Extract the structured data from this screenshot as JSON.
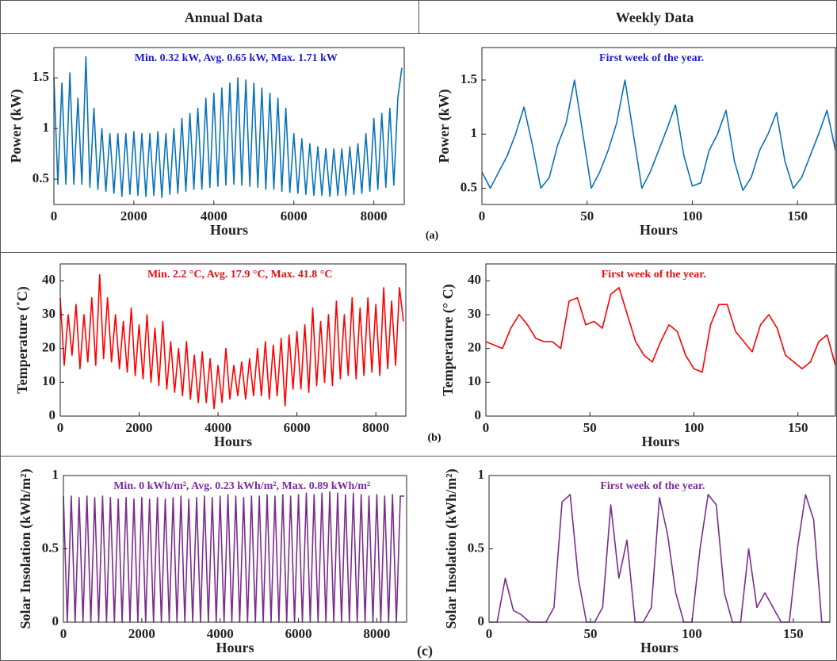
{
  "header": {
    "left": "Annual Data",
    "right": "Weekly Data"
  },
  "panel_labels": [
    "(a)",
    "(b)",
    "(c)"
  ],
  "chart_data": [
    {
      "type": "line",
      "annotation": "Min. 0.32 kW,   Avg. 0.65 kW,   Max. 1.71 kW",
      "annotation_color": "#1c1ccf",
      "xlabel": "Hours",
      "ylabel": "Power (kW)",
      "color": "#0a72b8",
      "xlim": [
        0,
        8760
      ],
      "xticks": [
        0,
        2000,
        4000,
        6000,
        8000
      ],
      "ylim": [
        0.25,
        1.8
      ],
      "yticks": [
        0.5,
        1,
        1.5
      ],
      "x": [
        0,
        100,
        200,
        300,
        400,
        500,
        600,
        700,
        800,
        900,
        1000,
        1100,
        1200,
        1300,
        1400,
        1500,
        1600,
        1700,
        1800,
        1900,
        2000,
        2100,
        2200,
        2300,
        2400,
        2500,
        2600,
        2700,
        2800,
        2900,
        3000,
        3100,
        3200,
        3300,
        3400,
        3500,
        3600,
        3700,
        3800,
        3900,
        4000,
        4100,
        4200,
        4300,
        4400,
        4500,
        4600,
        4700,
        4800,
        4900,
        5000,
        5100,
        5200,
        5300,
        5400,
        5500,
        5600,
        5700,
        5800,
        5900,
        6000,
        6100,
        6200,
        6300,
        6400,
        6500,
        6600,
        6700,
        6800,
        6900,
        7000,
        7100,
        7200,
        7300,
        7400,
        7500,
        7600,
        7700,
        7800,
        7900,
        8000,
        8100,
        8200,
        8300,
        8400,
        8500,
        8600,
        8700
      ],
      "values": [
        1.5,
        0.45,
        1.45,
        0.45,
        1.55,
        0.45,
        1.3,
        0.45,
        1.71,
        0.42,
        1.2,
        0.4,
        1.0,
        0.38,
        0.95,
        0.36,
        0.95,
        0.33,
        0.95,
        0.35,
        0.97,
        0.34,
        0.95,
        0.33,
        0.95,
        0.34,
        0.97,
        0.32,
        0.95,
        0.35,
        1.0,
        0.36,
        1.1,
        0.38,
        1.15,
        0.4,
        1.2,
        0.4,
        1.3,
        0.42,
        1.35,
        0.43,
        1.4,
        0.44,
        1.45,
        0.45,
        1.5,
        0.44,
        1.48,
        0.43,
        1.45,
        0.42,
        1.4,
        0.4,
        1.35,
        0.4,
        1.3,
        0.38,
        1.2,
        0.37,
        0.95,
        0.36,
        0.9,
        0.35,
        0.85,
        0.34,
        0.82,
        0.34,
        0.8,
        0.33,
        0.8,
        0.34,
        0.8,
        0.34,
        0.82,
        0.35,
        0.85,
        0.36,
        0.95,
        0.38,
        1.1,
        0.4,
        1.15,
        0.42,
        1.2,
        0.44,
        1.3,
        1.6
      ]
    },
    {
      "type": "line",
      "annotation": "First week of the year.",
      "annotation_color": "#1c1ccf",
      "xlabel": "Hours",
      "ylabel": "Power (kW)",
      "color": "#0a72b8",
      "xlim": [
        0,
        168
      ],
      "xticks": [
        0,
        50,
        100,
        150
      ],
      "ylim": [
        0.35,
        1.8
      ],
      "yticks": [
        0.5,
        1,
        1.5
      ],
      "x": [
        0,
        4,
        8,
        12,
        16,
        20,
        24,
        28,
        32,
        36,
        40,
        44,
        48,
        52,
        56,
        60,
        64,
        68,
        72,
        76,
        80,
        84,
        88,
        92,
        96,
        100,
        104,
        108,
        112,
        116,
        120,
        124,
        128,
        132,
        136,
        140,
        144,
        148,
        152,
        156,
        160,
        164,
        168
      ],
      "values": [
        0.65,
        0.5,
        0.65,
        0.8,
        1.0,
        1.25,
        0.9,
        0.5,
        0.6,
        0.9,
        1.1,
        1.5,
        1.0,
        0.5,
        0.65,
        0.85,
        1.1,
        1.5,
        1.0,
        0.5,
        0.65,
        0.85,
        1.05,
        1.27,
        0.8,
        0.52,
        0.55,
        0.85,
        1.0,
        1.22,
        0.75,
        0.48,
        0.6,
        0.85,
        1.0,
        1.2,
        0.75,
        0.5,
        0.6,
        0.8,
        1.0,
        1.22,
        0.85
      ]
    },
    {
      "type": "line",
      "annotation": "Min. 2.2 °C,  Avg. 17.9 °C,  Max. 41.8 °C",
      "annotation_color": "#e01010",
      "xlabel": "Hours",
      "ylabel": "Temperature (˚C)",
      "color": "#ff0000",
      "xlim": [
        0,
        8760
      ],
      "xticks": [
        0,
        2000,
        4000,
        6000,
        8000
      ],
      "ylim": [
        0,
        45
      ],
      "yticks": [
        0,
        10,
        20,
        30,
        40
      ],
      "x": [
        0,
        100,
        200,
        300,
        400,
        500,
        600,
        700,
        800,
        900,
        1000,
        1100,
        1200,
        1300,
        1400,
        1500,
        1600,
        1700,
        1800,
        1900,
        2000,
        2100,
        2200,
        2300,
        2400,
        2500,
        2600,
        2700,
        2800,
        2900,
        3000,
        3100,
        3200,
        3300,
        3400,
        3500,
        3600,
        3700,
        3800,
        3900,
        4000,
        4100,
        4200,
        4300,
        4400,
        4500,
        4600,
        4700,
        4800,
        4900,
        5000,
        5100,
        5200,
        5300,
        5400,
        5500,
        5600,
        5700,
        5800,
        5900,
        6000,
        6100,
        6200,
        6300,
        6400,
        6500,
        6600,
        6700,
        6800,
        6900,
        7000,
        7100,
        7200,
        7300,
        7400,
        7500,
        7600,
        7700,
        7800,
        7900,
        8000,
        8100,
        8200,
        8300,
        8400,
        8500,
        8600,
        8700
      ],
      "values": [
        35,
        15,
        30,
        18,
        33,
        14,
        30,
        16,
        35,
        15,
        41.8,
        17,
        35,
        16,
        30,
        14,
        28,
        13,
        32,
        12,
        27,
        11,
        30,
        10,
        26,
        9,
        28,
        8,
        22,
        7,
        20,
        6,
        22,
        5,
        18,
        4,
        19,
        4,
        17,
        2.2,
        15,
        4,
        20,
        5,
        15,
        6,
        16,
        5,
        17,
        6,
        20,
        6,
        22,
        5,
        21,
        6,
        23,
        3,
        24,
        8,
        25,
        8,
        27,
        7,
        32,
        9,
        28,
        10,
        30,
        9,
        34,
        11,
        30,
        12,
        35,
        11,
        32,
        12,
        35,
        13,
        33,
        12,
        38,
        14,
        34,
        15,
        38,
        28
      ]
    },
    {
      "type": "line",
      "annotation": "First week of the year.",
      "annotation_color": "#e01010",
      "xlabel": "Hours",
      "ylabel": "Temperature (° C)",
      "color": "#ff0000",
      "xlim": [
        0,
        168
      ],
      "xticks": [
        0,
        50,
        100,
        150
      ],
      "ylim": [
        0,
        45
      ],
      "yticks": [
        0,
        10,
        20,
        30,
        40
      ],
      "x": [
        0,
        4,
        8,
        12,
        16,
        20,
        24,
        28,
        32,
        36,
        40,
        44,
        48,
        52,
        56,
        60,
        64,
        68,
        72,
        76,
        80,
        84,
        88,
        92,
        96,
        100,
        104,
        108,
        112,
        116,
        120,
        124,
        128,
        132,
        136,
        140,
        144,
        148,
        152,
        156,
        160,
        164,
        168
      ],
      "values": [
        22,
        21,
        20,
        26,
        30,
        27,
        23,
        22,
        22,
        20,
        34,
        35,
        27,
        28,
        26,
        36,
        38,
        30,
        22,
        18,
        16,
        22,
        27,
        25,
        18,
        14,
        13,
        27,
        33,
        33,
        25,
        22,
        19,
        27,
        30,
        26,
        18,
        16,
        14,
        16,
        22,
        24,
        15
      ]
    },
    {
      "type": "line",
      "annotation": "Min. 0 kWh/m², Avg. 0.23 kWh/m², Max. 0.89 kWh/m²",
      "annotation_color": "#7a2a9a",
      "xlabel": "Hours",
      "ylabel": "Solar Insolation (kWh/m²)",
      "color": "#7b2d8e",
      "xlim": [
        0,
        8760
      ],
      "xticks": [
        0,
        2000,
        4000,
        6000,
        8000
      ],
      "ylim": [
        0,
        1
      ],
      "yticks": [
        0,
        0.5,
        1
      ],
      "x": [
        0,
        100,
        200,
        300,
        400,
        500,
        600,
        700,
        800,
        900,
        1000,
        1100,
        1200,
        1300,
        1400,
        1500,
        1600,
        1700,
        1800,
        1900,
        2000,
        2100,
        2200,
        2300,
        2400,
        2500,
        2600,
        2700,
        2800,
        2900,
        3000,
        3100,
        3200,
        3300,
        3400,
        3500,
        3600,
        3700,
        3800,
        3900,
        4000,
        4100,
        4200,
        4300,
        4400,
        4500,
        4600,
        4700,
        4800,
        4900,
        5000,
        5100,
        5200,
        5300,
        5400,
        5500,
        5600,
        5700,
        5800,
        5900,
        6000,
        6100,
        6200,
        6300,
        6400,
        6500,
        6600,
        6700,
        6800,
        6900,
        7000,
        7100,
        7200,
        7300,
        7400,
        7500,
        7600,
        7700,
        7800,
        7900,
        8000,
        8100,
        8200,
        8300,
        8400,
        8500,
        8600,
        8700
      ],
      "values": [
        0.86,
        0,
        0.86,
        0,
        0.85,
        0,
        0.86,
        0,
        0.85,
        0,
        0.86,
        0,
        0.85,
        0,
        0.84,
        0,
        0.85,
        0,
        0.84,
        0,
        0.85,
        0,
        0.84,
        0,
        0.85,
        0,
        0.84,
        0,
        0.85,
        0,
        0.86,
        0,
        0.84,
        0,
        0.85,
        0,
        0.86,
        0,
        0.85,
        0,
        0.86,
        0,
        0.87,
        0,
        0.86,
        0,
        0.85,
        0,
        0.86,
        0,
        0.86,
        0,
        0.87,
        0,
        0.86,
        0,
        0.87,
        0,
        0.86,
        0,
        0.87,
        0,
        0.88,
        0,
        0.87,
        0,
        0.88,
        0,
        0.89,
        0,
        0.88,
        0,
        0.87,
        0,
        0.88,
        0,
        0.87,
        0,
        0.86,
        0,
        0.87,
        0,
        0.86,
        0,
        0.87,
        0,
        0.86,
        0.86
      ]
    },
    {
      "type": "line",
      "annotation": "First week of the year.",
      "annotation_color": "#7a2a9a",
      "xlabel": "Hours",
      "ylabel": "Solar Insolation (kWh/m²)",
      "color": "#7b2d8e",
      "xlim": [
        0,
        168
      ],
      "xticks": [
        0,
        50,
        100,
        150
      ],
      "ylim": [
        0,
        1
      ],
      "yticks": [
        0,
        0.5,
        1
      ],
      "x": [
        0,
        4,
        8,
        12,
        16,
        20,
        24,
        28,
        32,
        36,
        40,
        44,
        48,
        52,
        56,
        60,
        64,
        68,
        72,
        76,
        80,
        84,
        88,
        92,
        96,
        100,
        104,
        108,
        112,
        116,
        120,
        124,
        128,
        132,
        136,
        140,
        144,
        148,
        152,
        156,
        160,
        164,
        168
      ],
      "values": [
        0,
        0,
        0.3,
        0.08,
        0.05,
        0,
        0,
        0,
        0.1,
        0.82,
        0.87,
        0.3,
        0,
        0,
        0.1,
        0.8,
        0.3,
        0.56,
        0,
        0,
        0.1,
        0.85,
        0.6,
        0.2,
        0,
        0,
        0.5,
        0.87,
        0.8,
        0.2,
        0,
        0,
        0.5,
        0.1,
        0.2,
        0.1,
        0,
        0,
        0.5,
        0.87,
        0.7,
        0,
        0
      ]
    }
  ]
}
